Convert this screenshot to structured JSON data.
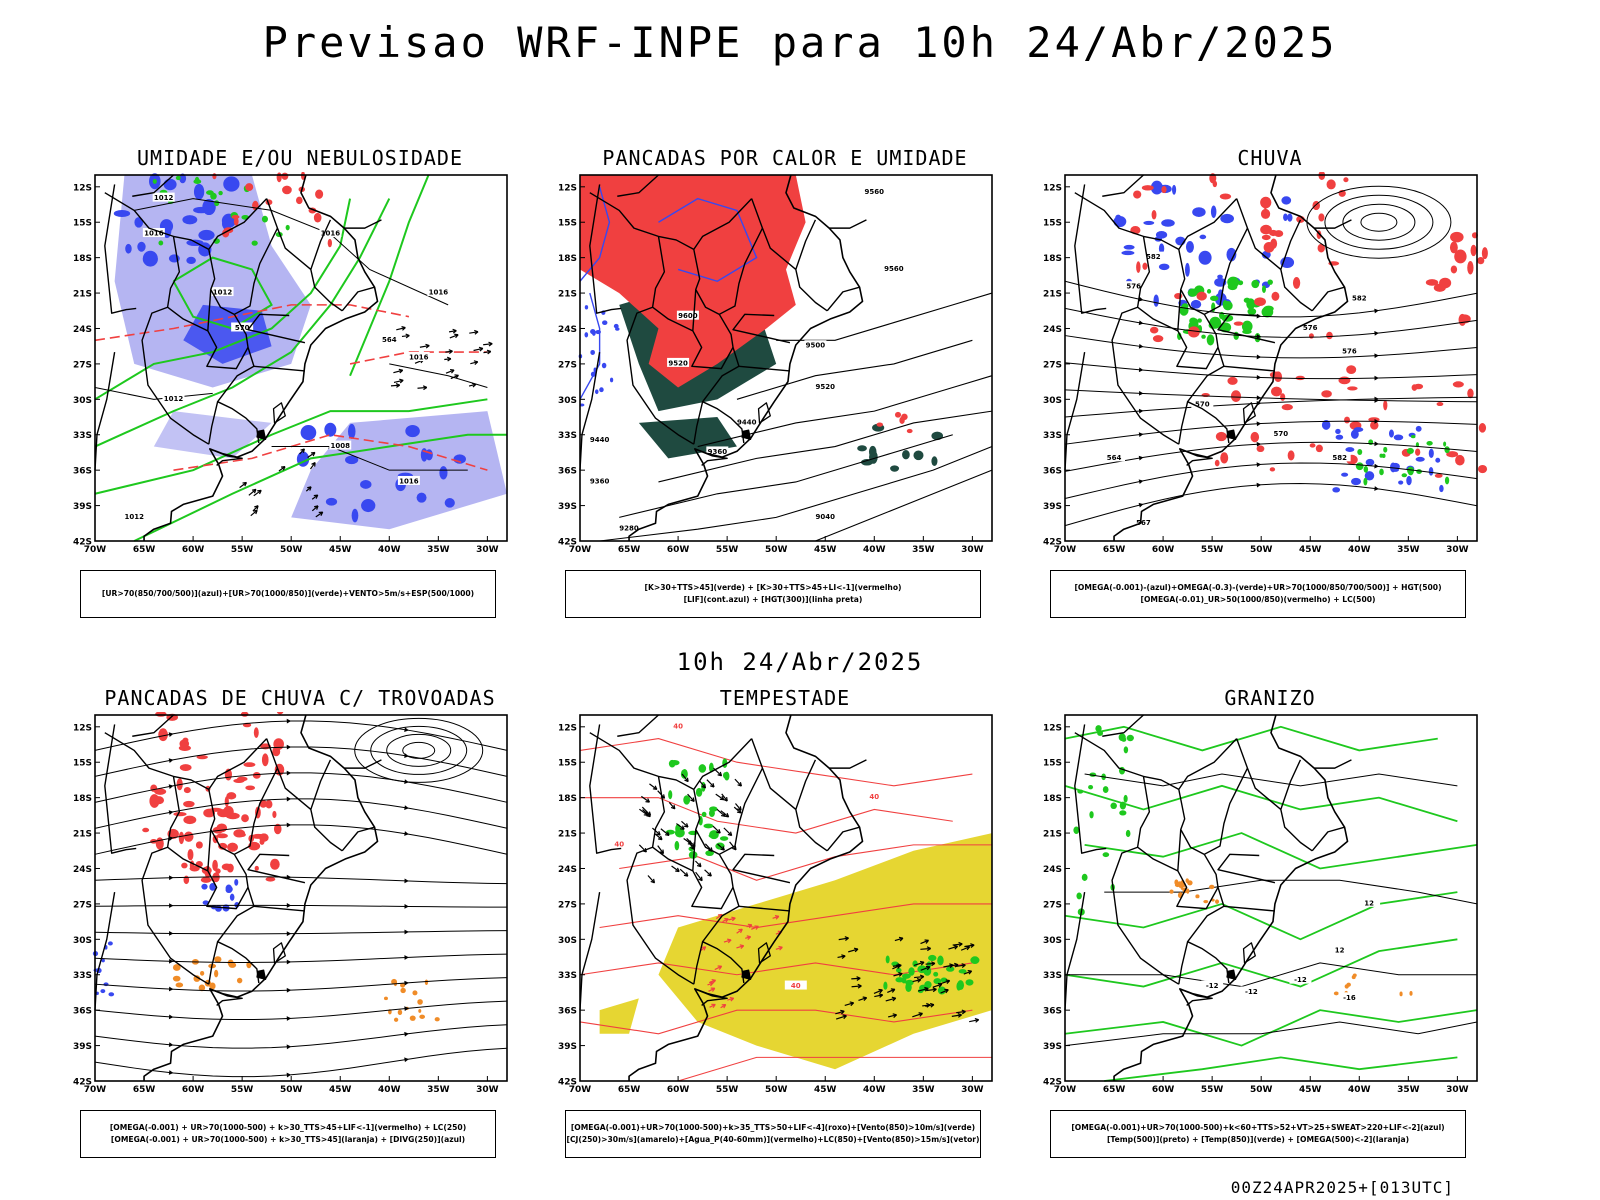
{
  "title": "Previsao WRF-INPE  para 10h 24/Abr/2025",
  "subtitle": "10h 24/Abr/2025",
  "footer": "00Z24APR2025+[013UTC]",
  "axes": {
    "lat_labels": [
      "12S",
      "15S",
      "18S",
      "21S",
      "24S",
      "27S",
      "30S",
      "33S",
      "36S",
      "39S",
      "42S"
    ],
    "lon_labels": [
      "70W",
      "65W",
      "60W",
      "55W",
      "50W",
      "45W",
      "40W",
      "35W",
      "30W"
    ]
  },
  "colors": {
    "blue": "#3848f0",
    "lightblue": "#a8a8f0",
    "green": "#1ec81e",
    "red": "#f04040",
    "orange": "#f08c28",
    "darkgreen": "#1f4a40",
    "yellow": "#e6d632",
    "black": "#000000"
  },
  "panels": [
    {
      "title": "UMIDADE E/OU NEBULOSIDADE",
      "legend": [
        "[UR>70(850/700/500)](azul)+[UR>70(1000/850)](verde)+VENTO>5m/s+ESP(500/1000)"
      ],
      "contour_labels": [
        "1012",
        "1016",
        "1016",
        "1012",
        "1016",
        "1016",
        "570",
        "564",
        "1012",
        "1008",
        "1016",
        "1012"
      ]
    },
    {
      "title": "PANCADAS POR CALOR E UMIDADE",
      "legend": [
        "[K>30+TTS>45](verde) + [K>30+TTS>45+LI<-1](vermelho)",
        "[LIF](cont.azul) + [HGT(300)](linha preta)"
      ],
      "contour_labels": [
        "9560",
        "9560",
        "9600",
        "9520",
        "9500",
        "9520",
        "9440",
        "9360",
        "9440",
        "9360",
        "9280",
        "9040"
      ]
    },
    {
      "title": "CHUVA",
      "legend": [
        "[OMEGA(-0.001)-(azul)+OMEGA(-0.3)-(verde)+UR>70(1000/850/700/500)] + HGT(500)",
        "[OMEGA(-0.01)_UR>50(1000/850)(vermelho) + LC(500)"
      ],
      "contour_labels": [
        "582",
        "576",
        "582",
        "576",
        "576",
        "570",
        "570",
        "564",
        "582",
        "567"
      ]
    },
    {
      "title": "PANCADAS DE CHUVA C/ TROVOADAS",
      "legend": [
        "[OMEGA(-0.001) + UR>70(1000-500) + k>30_TTS>45+LIF<-1](vermelho) + LC(250)",
        "[OMEGA(-0.001) + UR>70(1000-500) + k>30_TTS>45](laranja) + [DIVG(250)](azul)"
      ],
      "contour_labels": []
    },
    {
      "title": "TEMPESTADE",
      "legend": [
        "[OMEGA(-0.001)+UR>70(1000-500)+k>35_TTS>50+LIF<-4](roxo)+[Vento(850)>10m/s](verde)",
        "[CJ(250)>30m/s](amarelo)+[Agua_P(40-60mm)](vermelho)+LC(850)+[Vento(850)>15m/s](vetor)"
      ],
      "contour_labels": [
        "40",
        "40",
        "40",
        "40"
      ]
    },
    {
      "title": "GRANIZO",
      "legend": [
        "[OMEGA(-0.001)+UR>70(1000-500)+k<60+TTS>52+VT>25+SWEAT>220+LIF<-2](azul)",
        "[Temp(500)](preto) + [Temp(850)](verde) + [OMEGA(500)<-2](laranja)"
      ],
      "contour_labels": [
        "-12",
        "-12",
        "-12",
        "-16",
        "12",
        "12"
      ]
    }
  ]
}
